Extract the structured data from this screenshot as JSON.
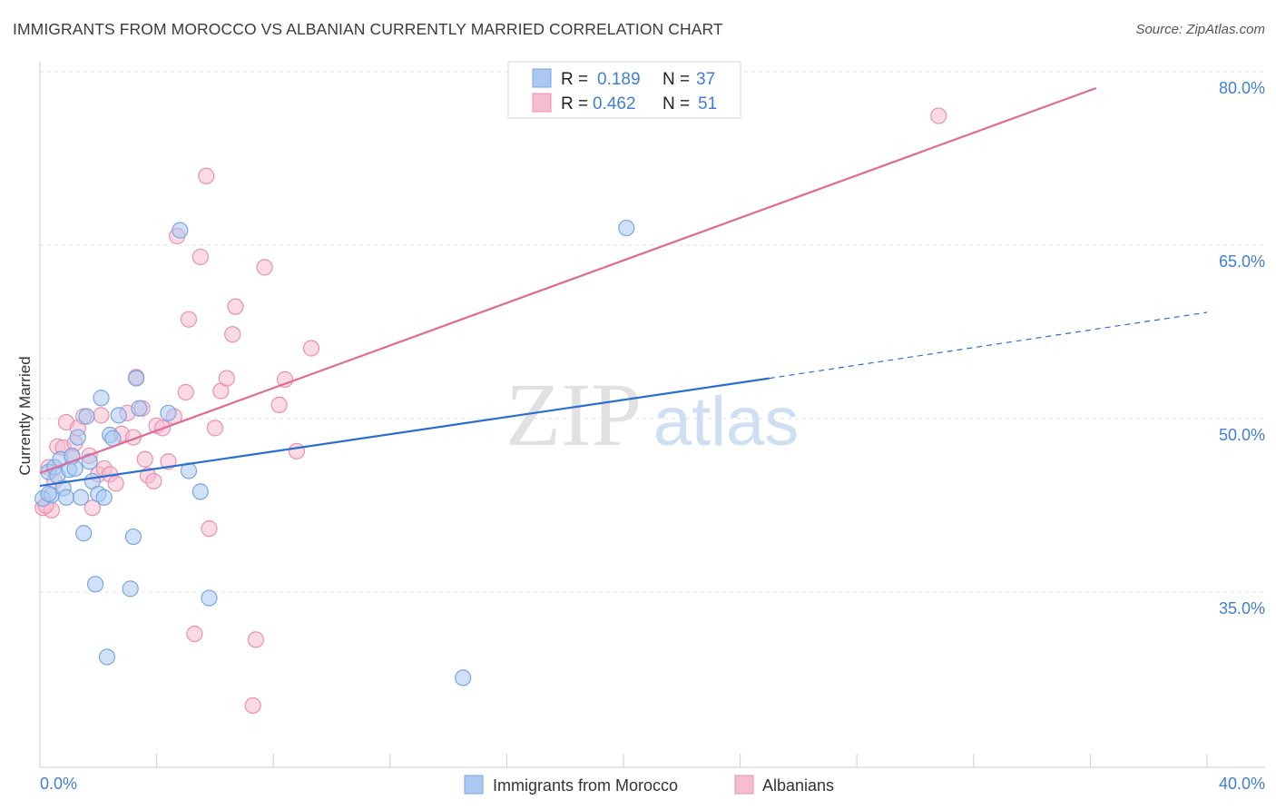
{
  "title": "IMMIGRANTS FROM MOROCCO VS ALBANIAN CURRENTLY MARRIED CORRELATION CHART",
  "source": "Source: ZipAtlas.com",
  "watermark": {
    "zip": "ZIP",
    "atlas": "atlas"
  },
  "colors": {
    "blue_fill": "#aac8f2",
    "blue_stroke": "#7aa6e0",
    "blue_line": "#2a6fd0",
    "pink_fill": "#f6bcd0",
    "pink_stroke": "#ea90b0",
    "pink_line": "#e06a95",
    "grid": "#e3e3e3",
    "tick_text": "#3f7fd6"
  },
  "legend": {
    "rows": [
      {
        "r_label": "R =",
        "r_value": "0.189",
        "n_label": "N =",
        "n_value": "37"
      },
      {
        "r_label": "R =",
        "r_value": "0.462",
        "n_label": "N =",
        "n_value": "51"
      }
    ]
  },
  "chart_data": {
    "type": "scatter",
    "title": "IMMIGRANTS FROM MOROCCO VS ALBANIAN CURRENTLY MARRIED CORRELATION CHART",
    "xlabel": "",
    "ylabel": "Currently Married",
    "xlim": [
      0,
      40
    ],
    "ylim": [
      22,
      82
    ],
    "x_tick_labels": [
      "0.0%",
      "40.0%"
    ],
    "y_ticks": [
      35,
      50,
      65,
      80
    ],
    "y_tick_labels": [
      "35.0%",
      "50.0%",
      "65.0%",
      "80.0%"
    ],
    "grid": true,
    "legend_position": "top-center",
    "series": [
      {
        "name": "Immigrants from Morocco",
        "color": "#aac8f2",
        "r": 0.189,
        "n": 37,
        "trend": {
          "x0": 0,
          "y0": 45.6,
          "x1": 25,
          "y1": 54.9,
          "dash_to_x": 40,
          "dash_to_y": 60.6
        },
        "points": [
          [
            0.1,
            44.5
          ],
          [
            0.3,
            46.8
          ],
          [
            0.4,
            44.8
          ],
          [
            0.5,
            47.2
          ],
          [
            0.6,
            46.5
          ],
          [
            0.7,
            47.9
          ],
          [
            0.8,
            45.4
          ],
          [
            0.9,
            44.6
          ],
          [
            1.0,
            47.0
          ],
          [
            1.1,
            48.2
          ],
          [
            1.2,
            47.1
          ],
          [
            1.3,
            49.8
          ],
          [
            1.4,
            44.6
          ],
          [
            1.5,
            41.5
          ],
          [
            1.6,
            51.6
          ],
          [
            1.7,
            47.7
          ],
          [
            1.8,
            46.0
          ],
          [
            1.9,
            37.1
          ],
          [
            2.0,
            44.9
          ],
          [
            2.2,
            44.6
          ],
          [
            2.3,
            30.8
          ],
          [
            2.4,
            50.0
          ],
          [
            2.5,
            49.7
          ],
          [
            2.7,
            51.7
          ],
          [
            2.1,
            53.2
          ],
          [
            3.1,
            36.7
          ],
          [
            3.2,
            41.2
          ],
          [
            3.3,
            54.9
          ],
          [
            3.4,
            52.3
          ],
          [
            4.4,
            51.9
          ],
          [
            4.8,
            67.7
          ],
          [
            5.1,
            46.9
          ],
          [
            5.5,
            45.1
          ],
          [
            5.8,
            35.9
          ],
          [
            14.5,
            29.0
          ],
          [
            20.1,
            67.9
          ],
          [
            0.3,
            44.9
          ]
        ]
      },
      {
        "name": "Albanians",
        "color": "#f6bcd0",
        "r": 0.462,
        "n": 51,
        "trend": {
          "x0": 0,
          "y0": 46.7,
          "x1": 36.2,
          "y1": 80.0
        },
        "points": [
          [
            0.1,
            43.7
          ],
          [
            0.3,
            47.2
          ],
          [
            0.4,
            43.5
          ],
          [
            0.5,
            46.0
          ],
          [
            0.6,
            49.0
          ],
          [
            0.8,
            48.9
          ],
          [
            0.9,
            51.1
          ],
          [
            1.1,
            48.1
          ],
          [
            1.2,
            49.3
          ],
          [
            1.3,
            50.6
          ],
          [
            1.5,
            51.6
          ],
          [
            1.7,
            48.2
          ],
          [
            1.8,
            43.7
          ],
          [
            2.0,
            46.6
          ],
          [
            2.1,
            51.7
          ],
          [
            2.2,
            47.1
          ],
          [
            2.4,
            46.6
          ],
          [
            2.6,
            45.8
          ],
          [
            2.8,
            50.1
          ],
          [
            3.0,
            51.9
          ],
          [
            3.2,
            49.8
          ],
          [
            3.3,
            55.0
          ],
          [
            3.5,
            52.3
          ],
          [
            3.6,
            47.9
          ],
          [
            3.7,
            46.5
          ],
          [
            3.9,
            46.0
          ],
          [
            4.0,
            50.8
          ],
          [
            4.2,
            50.6
          ],
          [
            4.4,
            47.7
          ],
          [
            4.6,
            51.6
          ],
          [
            4.7,
            67.2
          ],
          [
            5.0,
            53.7
          ],
          [
            5.1,
            60.0
          ],
          [
            5.3,
            32.8
          ],
          [
            5.5,
            65.4
          ],
          [
            5.8,
            41.9
          ],
          [
            5.7,
            72.4
          ],
          [
            6.0,
            50.6
          ],
          [
            6.2,
            53.8
          ],
          [
            6.4,
            54.9
          ],
          [
            6.6,
            58.7
          ],
          [
            6.7,
            61.1
          ],
          [
            7.4,
            32.3
          ],
          [
            7.3,
            26.6
          ],
          [
            7.7,
            64.5
          ],
          [
            8.2,
            52.6
          ],
          [
            8.4,
            54.8
          ],
          [
            8.8,
            48.6
          ],
          [
            9.3,
            57.5
          ],
          [
            30.8,
            77.6
          ],
          [
            0.2,
            43.9
          ]
        ]
      }
    ]
  },
  "bottom_legend": {
    "items": [
      {
        "label": "Immigrants from Morocco"
      },
      {
        "label": "Albanians"
      }
    ]
  }
}
